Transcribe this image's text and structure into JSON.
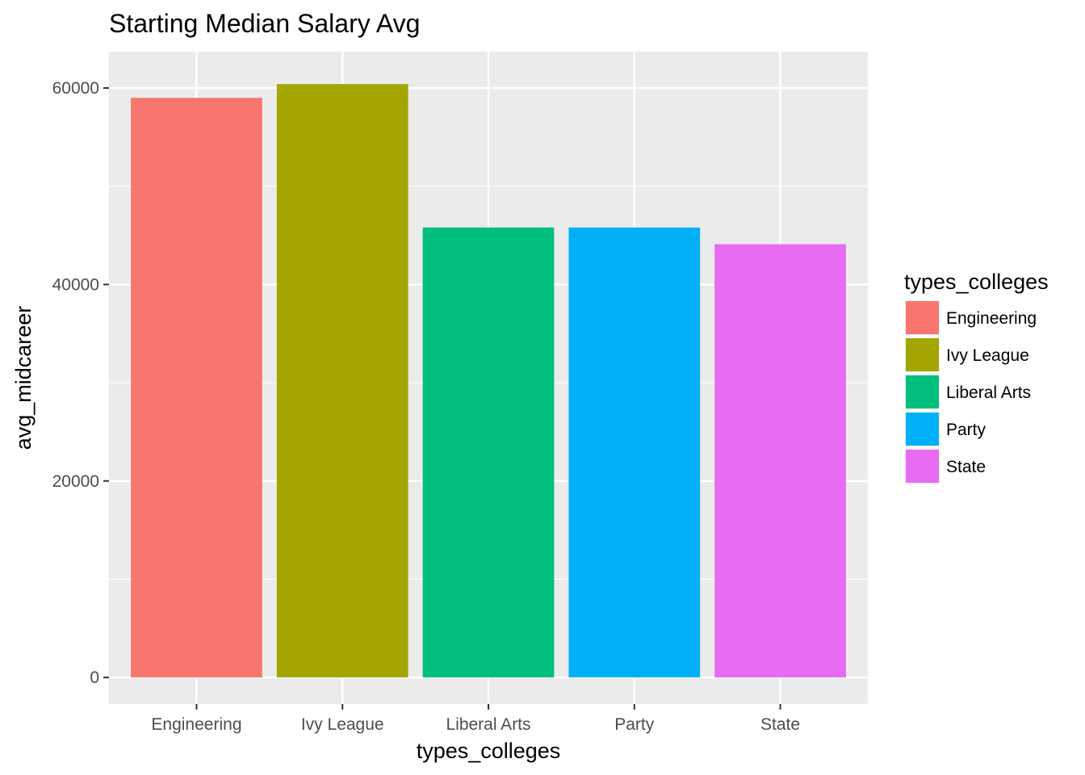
{
  "chart_data": {
    "type": "bar",
    "title": "Starting Median Salary Avg",
    "xlabel": "types_colleges",
    "ylabel": "avg_midcareer",
    "categories": [
      "Engineering",
      "Ivy League",
      "Liberal Arts",
      "Party",
      "State"
    ],
    "values": [
      59000,
      60400,
      45800,
      45800,
      44100
    ],
    "colors": [
      "#F8766D",
      "#A3A500",
      "#00BF7D",
      "#00B0F6",
      "#E76BF3"
    ],
    "ylim": [
      -2700,
      63700
    ],
    "yticks": [
      0,
      20000,
      40000,
      60000
    ],
    "grid": true,
    "legend": {
      "title": "types_colleges",
      "placement": "right",
      "entries": [
        "Engineering",
        "Ivy League",
        "Liberal Arts",
        "Party",
        "State"
      ]
    }
  }
}
